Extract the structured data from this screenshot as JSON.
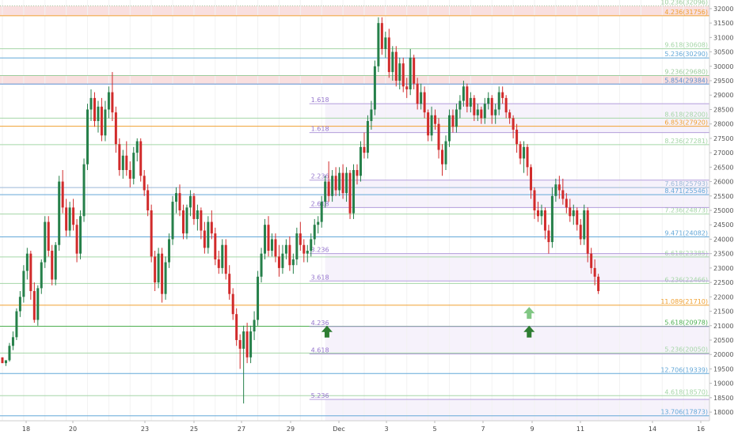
{
  "chart_data": {
    "type": "candlestick",
    "title": "",
    "xlabel": "",
    "ylabel": "",
    "ylim": [
      17700,
      32300
    ],
    "x_ticks": [
      "18",
      "20",
      "23",
      "25",
      "27",
      "29",
      "Dec",
      "3",
      "5",
      "7",
      "9",
      "11",
      "14",
      "16"
    ],
    "y_ticks": [
      18000,
      18500,
      19000,
      19500,
      20000,
      20500,
      21000,
      21500,
      22000,
      22500,
      23000,
      23500,
      24000,
      24500,
      25000,
      25500,
      26000,
      26500,
      27000,
      27500,
      28000,
      28500,
      29000,
      29500,
      30000,
      30500,
      31000,
      31500,
      32000
    ],
    "resistance_zones": [
      {
        "from": 31756,
        "to": 32096,
        "color": "#f8d7d7"
      },
      {
        "from": 29384,
        "to": 29680,
        "color": "#f8d7d7"
      }
    ],
    "right_levels": [
      {
        "label": "10.236(32096)",
        "value": 32096,
        "color": "#9ccc9c",
        "style": "dotted"
      },
      {
        "label": "4.236(31756)",
        "value": 31756,
        "color": "#f0a030",
        "style": "solid"
      },
      {
        "label": "9.618(30608)",
        "value": 30608,
        "color": "#a5d6a7",
        "style": "solid"
      },
      {
        "label": "5.236(30290)",
        "value": 30290,
        "color": "#64a8d8",
        "style": "solid"
      },
      {
        "label": "9.236(29680)",
        "value": 29680,
        "color": "#9ccc9c",
        "style": "solid"
      },
      {
        "label": "5.854(29384)",
        "value": 29384,
        "color": "#5b8fd0",
        "style": "solid"
      },
      {
        "label": "8.618(28200)",
        "value": 28200,
        "color": "#a5d6a7",
        "style": "solid"
      },
      {
        "label": "6.853(27920)",
        "value": 27920,
        "color": "#f0a030",
        "style": "solid"
      },
      {
        "label": "8.236(27281)",
        "value": 27281,
        "color": "#a5d6a7",
        "style": "solid"
      },
      {
        "label": "7.618(25793)",
        "value": 25793,
        "color": "#9bb8d8",
        "style": "solid"
      },
      {
        "label": "8.471(25546)",
        "value": 25546,
        "color": "#64a8d8",
        "style": "solid"
      },
      {
        "label": "7.236(24873)",
        "value": 24873,
        "color": "#a5d6a7",
        "style": "solid"
      },
      {
        "label": "9.471(24082)",
        "value": 24082,
        "color": "#64a8d8",
        "style": "solid"
      },
      {
        "label": "6.618(23385)",
        "value": 23385,
        "color": "#a5d6a7",
        "style": "solid"
      },
      {
        "label": "6.236(22466)",
        "value": 22466,
        "color": "#a5d6a7",
        "style": "solid"
      },
      {
        "label": "11.089(21710)",
        "value": 21710,
        "color": "#f0a030",
        "style": "solid"
      },
      {
        "label": "5.618(20978)",
        "value": 20978,
        "color": "#4caf50",
        "style": "solid"
      },
      {
        "label": "5.236(20050)",
        "value": 20050,
        "color": "#a5d6a7",
        "style": "solid"
      },
      {
        "label": "12.706(19339)",
        "value": 19339,
        "color": "#64a8d8",
        "style": "solid"
      },
      {
        "label": "4.618(18570)",
        "value": 18570,
        "color": "#a5d6a7",
        "style": "solid"
      },
      {
        "label": "13.706(17873)",
        "value": 17873,
        "color": "#64a8d8",
        "style": "solid"
      }
    ],
    "purple_levels": [
      {
        "label": "1.618",
        "value": 28700
      },
      {
        "label": "1.618",
        "value": 27700
      },
      {
        "label": "2.236",
        "value": 26050
      },
      {
        "label": "2.618",
        "value": 25100
      },
      {
        "label": "3.236",
        "value": 23500
      },
      {
        "label": "3.618",
        "value": 22550
      },
      {
        "label": "4.236",
        "value": 20970
      },
      {
        "label": "4.618",
        "value": 20020
      },
      {
        "label": "5.236",
        "value": 18440
      }
    ],
    "arrows": [
      {
        "x_index": 91.5,
        "y": 20780,
        "color": "#2e7d32"
      },
      {
        "x_index": 148.5,
        "y": 20780,
        "color": "#2e7d32"
      },
      {
        "x_index": 148.5,
        "y": 21430,
        "color": "#81c784"
      }
    ],
    "candles_ohlc": [
      [
        19900,
        19900,
        19700,
        19700
      ],
      [
        19700,
        19800,
        19600,
        19800
      ],
      [
        19800,
        20400,
        19750,
        20300
      ],
      [
        20300,
        20800,
        20150,
        20600
      ],
      [
        20600,
        21600,
        20500,
        21500
      ],
      [
        21500,
        22200,
        21300,
        22000
      ],
      [
        22000,
        23100,
        21800,
        22900
      ],
      [
        22900,
        23700,
        22600,
        23500
      ],
      [
        23500,
        23600,
        21900,
        22200
      ],
      [
        22200,
        22500,
        21100,
        21200
      ],
      [
        21200,
        22400,
        21000,
        22300
      ],
      [
        22300,
        23300,
        22100,
        23200
      ],
      [
        23200,
        24800,
        23000,
        24600
      ],
      [
        24600,
        24800,
        23400,
        23600
      ],
      [
        23600,
        23800,
        22400,
        22600
      ],
      [
        22600,
        23900,
        22400,
        23800
      ],
      [
        23800,
        26200,
        23600,
        26000
      ],
      [
        26000,
        26400,
        24900,
        25100
      ],
      [
        25100,
        25400,
        24100,
        24300
      ],
      [
        24300,
        25300,
        24100,
        25100
      ],
      [
        25100,
        25400,
        24300,
        24500
      ],
      [
        24500,
        24700,
        23200,
        23500
      ],
      [
        23500,
        25000,
        23300,
        24800
      ],
      [
        24800,
        26800,
        24600,
        26600
      ],
      [
        26600,
        28700,
        26400,
        28500
      ],
      [
        28500,
        29200,
        28100,
        28900
      ],
      [
        28900,
        29100,
        27900,
        28100
      ],
      [
        28100,
        28800,
        27700,
        28600
      ],
      [
        28600,
        28900,
        27400,
        27600
      ],
      [
        27600,
        28800,
        27400,
        28500
      ],
      [
        28500,
        29300,
        28200,
        29100
      ],
      [
        29100,
        29800,
        28100,
        28400
      ],
      [
        28400,
        28600,
        27000,
        27300
      ],
      [
        27300,
        27500,
        26200,
        26400
      ],
      [
        26400,
        27100,
        26100,
        26900
      ],
      [
        26900,
        27400,
        26200,
        26400
      ],
      [
        26400,
        26700,
        25800,
        26100
      ],
      [
        26100,
        27200,
        25900,
        27000
      ],
      [
        27000,
        27500,
        26700,
        27400
      ],
      [
        27400,
        27500,
        26000,
        26200
      ],
      [
        26200,
        26400,
        25500,
        25700
      ],
      [
        25700,
        25900,
        24800,
        25000
      ],
      [
        25000,
        25200,
        23200,
        23400
      ],
      [
        23400,
        23600,
        22200,
        22500
      ],
      [
        22500,
        23700,
        22300,
        23500
      ],
      [
        23500,
        23700,
        21800,
        22100
      ],
      [
        22100,
        23400,
        21900,
        23200
      ],
      [
        23200,
        24200,
        23000,
        24000
      ],
      [
        24000,
        25500,
        23800,
        25300
      ],
      [
        25300,
        25800,
        24900,
        25600
      ],
      [
        25600,
        25900,
        24800,
        25000
      ],
      [
        25000,
        25200,
        24000,
        24200
      ],
      [
        24200,
        25200,
        24000,
        25100
      ],
      [
        25100,
        25700,
        24800,
        25500
      ],
      [
        25500,
        25600,
        24500,
        24700
      ],
      [
        24700,
        25200,
        24300,
        25000
      ],
      [
        25000,
        25100,
        24000,
        24300
      ],
      [
        24300,
        24600,
        23500,
        23700
      ],
      [
        23700,
        24800,
        23500,
        24600
      ],
      [
        24600,
        25000,
        24000,
        24200
      ],
      [
        24200,
        24400,
        23100,
        23300
      ],
      [
        23300,
        23600,
        22800,
        23000
      ],
      [
        23000,
        24000,
        22800,
        23800
      ],
      [
        23800,
        24000,
        22600,
        22800
      ],
      [
        22800,
        23100,
        21900,
        22100
      ],
      [
        22100,
        22300,
        21200,
        21400
      ],
      [
        21400,
        21600,
        20300,
        20500
      ],
      [
        20500,
        20700,
        19500,
        20200
      ],
      [
        20200,
        21000,
        18300,
        20800
      ],
      [
        20800,
        21100,
        19700,
        19900
      ],
      [
        19900,
        21000,
        19700,
        20800
      ],
      [
        20800,
        21500,
        20500,
        21200
      ],
      [
        21200,
        22900,
        21000,
        22700
      ],
      [
        22700,
        23700,
        22500,
        23500
      ],
      [
        23500,
        24700,
        23300,
        24500
      ],
      [
        24500,
        24800,
        23400,
        23600
      ],
      [
        23600,
        24200,
        23400,
        24000
      ],
      [
        24000,
        24200,
        23200,
        23400
      ],
      [
        23400,
        23800,
        22700,
        23000
      ],
      [
        23000,
        23800,
        22800,
        23500
      ],
      [
        23500,
        24000,
        23300,
        23800
      ],
      [
        23800,
        24100,
        22900,
        23100
      ],
      [
        23100,
        23500,
        22800,
        23300
      ],
      [
        23300,
        24400,
        23100,
        24200
      ],
      [
        24200,
        24600,
        23600,
        23800
      ],
      [
        23800,
        24000,
        23200,
        23500
      ],
      [
        23500,
        23800,
        23200,
        23600
      ],
      [
        23600,
        24200,
        23400,
        24000
      ],
      [
        24000,
        24700,
        23800,
        24500
      ],
      [
        24500,
        24800,
        24200,
        24600
      ],
      [
        24600,
        25500,
        24400,
        25300
      ],
      [
        25300,
        26200,
        25100,
        26000
      ],
      [
        26000,
        26700,
        25300,
        25500
      ],
      [
        25500,
        26400,
        25300,
        26200
      ],
      [
        26200,
        26500,
        25500,
        25700
      ],
      [
        25700,
        26500,
        25500,
        26300
      ],
      [
        26300,
        26600,
        25400,
        25600
      ],
      [
        25600,
        26500,
        25300,
        26300
      ],
      [
        26300,
        26400,
        24700,
        24900
      ],
      [
        24900,
        26600,
        24700,
        26400
      ],
      [
        26400,
        26600,
        25900,
        26200
      ],
      [
        26200,
        27400,
        26000,
        27200
      ],
      [
        27200,
        27700,
        26800,
        27000
      ],
      [
        27000,
        28300,
        26800,
        28100
      ],
      [
        28100,
        28800,
        27800,
        28500
      ],
      [
        28500,
        30200,
        28300,
        30000
      ],
      [
        30000,
        31700,
        29800,
        31500
      ],
      [
        31500,
        31700,
        30400,
        30600
      ],
      [
        30600,
        31200,
        30300,
        31000
      ],
      [
        31000,
        31300,
        29600,
        29800
      ],
      [
        29800,
        30700,
        29500,
        30500
      ],
      [
        30500,
        30700,
        29300,
        29500
      ],
      [
        29500,
        30300,
        29200,
        30100
      ],
      [
        30100,
        30300,
        29100,
        29300
      ],
      [
        29300,
        29600,
        28900,
        29200
      ],
      [
        29200,
        30600,
        29000,
        30300
      ],
      [
        30300,
        30400,
        29200,
        29400
      ],
      [
        29400,
        29600,
        28500,
        28700
      ],
      [
        28700,
        29400,
        28500,
        29100
      ],
      [
        29100,
        29300,
        28200,
        28400
      ],
      [
        28400,
        28500,
        27400,
        27600
      ],
      [
        27600,
        28600,
        27400,
        28300
      ],
      [
        28300,
        28500,
        27800,
        28000
      ],
      [
        28000,
        28200,
        26800,
        27100
      ],
      [
        27100,
        27300,
        26200,
        26600
      ],
      [
        26600,
        27600,
        26400,
        27400
      ],
      [
        27400,
        28500,
        27200,
        28300
      ],
      [
        28300,
        28500,
        27700,
        27900
      ],
      [
        27900,
        28700,
        27700,
        28500
      ],
      [
        28500,
        29000,
        28200,
        28800
      ],
      [
        28800,
        29500,
        28600,
        29300
      ],
      [
        29300,
        29400,
        28400,
        28600
      ],
      [
        28600,
        29100,
        28400,
        28900
      ],
      [
        28900,
        29000,
        28100,
        28300
      ],
      [
        28300,
        28700,
        28100,
        28500
      ],
      [
        28500,
        28600,
        28000,
        28200
      ],
      [
        28200,
        28900,
        28000,
        28700
      ],
      [
        28700,
        29100,
        28500,
        28900
      ],
      [
        28900,
        29000,
        28000,
        28300
      ],
      [
        28300,
        28700,
        28000,
        28500
      ],
      [
        28500,
        29300,
        28300,
        29100
      ],
      [
        29100,
        29300,
        28700,
        28900
      ],
      [
        28900,
        29000,
        28200,
        28400
      ],
      [
        28400,
        28500,
        28000,
        28200
      ],
      [
        28200,
        28300,
        27500,
        27800
      ],
      [
        27800,
        28000,
        27000,
        27300
      ],
      [
        27300,
        27400,
        26600,
        26800
      ],
      [
        26800,
        27400,
        26300,
        27200
      ],
      [
        27200,
        27300,
        26200,
        26500
      ],
      [
        26500,
        26600,
        25400,
        25700
      ],
      [
        25700,
        25800,
        24700,
        25000
      ],
      [
        25000,
        25300,
        24600,
        24800
      ],
      [
        24800,
        25200,
        24500,
        25000
      ],
      [
        25000,
        25100,
        24000,
        24300
      ],
      [
        24300,
        24500,
        23500,
        23900
      ],
      [
        23900,
        25800,
        23700,
        25500
      ],
      [
        25500,
        26100,
        25300,
        25900
      ],
      [
        25900,
        26200,
        25400,
        25700
      ],
      [
        25700,
        26100,
        25200,
        25400
      ],
      [
        25400,
        25600,
        24900,
        25100
      ],
      [
        25100,
        25400,
        24600,
        24800
      ],
      [
        24800,
        25200,
        24500,
        25000
      ],
      [
        25000,
        25100,
        24300,
        24500
      ],
      [
        24500,
        24700,
        23800,
        24000
      ],
      [
        24000,
        25200,
        23800,
        25000
      ],
      [
        25000,
        25100,
        23200,
        23500
      ],
      [
        23500,
        23700,
        22800,
        23000
      ],
      [
        23000,
        23300,
        22400,
        22700
      ],
      [
        22700,
        22800,
        22100,
        22200
      ]
    ]
  }
}
